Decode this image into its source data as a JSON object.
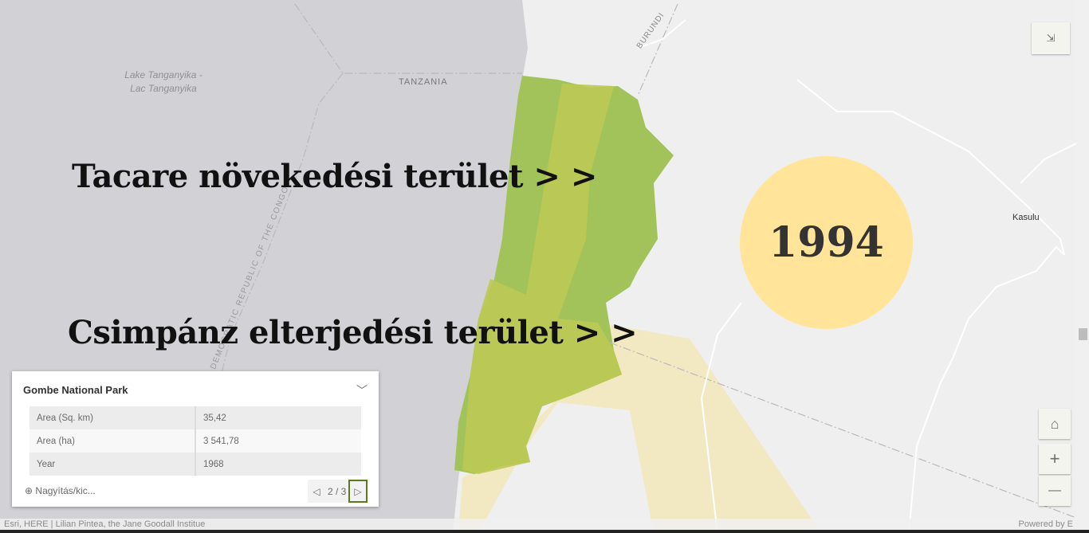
{
  "map": {
    "labels": {
      "lake": "Lake Tanganyika - Lac Tanganyika",
      "tanzania": "TANZANIA",
      "burundi": "BURUNDI",
      "drc": "DEMOCRATIC REPUBLIC OF THE CONGO",
      "kasulu": "Kasulu"
    },
    "colors": {
      "water": "#d2d1d5",
      "land": "#efefef",
      "tacare": "#a2c35a",
      "chimp": "#bcc955",
      "range": "#f2e7bd",
      "year_circle": "#ffe49a"
    }
  },
  "overlay": {
    "tacare_label": "Tacare növekedési terület > >",
    "chimp_label": "Csimpánz elterjedési terület > >",
    "year": "1994"
  },
  "controls": {
    "exit_fullscreen_icon": "collapse-arrows-icon",
    "home_icon": "home-icon",
    "zoom_in": "+",
    "zoom_out": "—"
  },
  "popup": {
    "title": "Gombe National Park",
    "rows": [
      {
        "label": "Area (Sq. km)",
        "value": "35,42"
      },
      {
        "label": "Area (ha)",
        "value": "3 541,78"
      },
      {
        "label": "Year",
        "value": "1968"
      }
    ],
    "zoom_to": "Nagyítás/kic...",
    "pager": "2 / 3"
  },
  "attribution": {
    "text": "Esri, HERE | Lilian Pintea, the Jane Goodall Institue",
    "powered": "Powered by E"
  }
}
